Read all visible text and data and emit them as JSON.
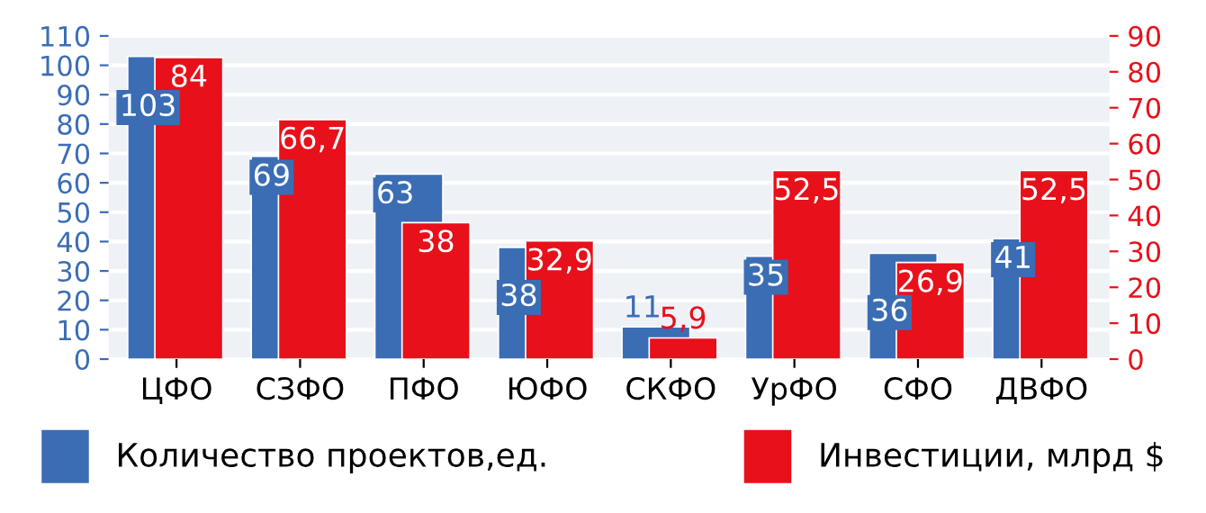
{
  "chart_data": {
    "type": "bar",
    "categories": [
      "ЦФО",
      "СЗФО",
      "ПФО",
      "ЮФО",
      "СКФО",
      "УрФО",
      "СФО",
      "ДВФО"
    ],
    "series": [
      {
        "name": "Количество проектов,ед.",
        "color": "#3b6db5",
        "values": [
          103,
          69,
          63,
          38,
          11,
          35,
          36,
          41
        ],
        "value_labels": [
          "103",
          "69",
          "63",
          "38",
          "11",
          "35",
          "36",
          "41"
        ]
      },
      {
        "name": "Инвестиции, млрд $",
        "color": "#e8101a",
        "axis": "y2",
        "values": [
          84,
          66.7,
          38,
          32.9,
          5.9,
          52.5,
          26.9,
          52.5
        ],
        "value_labels": [
          "84",
          "66,7",
          "38",
          "32,9",
          "5,9",
          "52,5",
          "26,9",
          "52,5"
        ]
      }
    ],
    "ylim": [
      0,
      110
    ],
    "yticks": [
      0,
      10,
      20,
      30,
      40,
      50,
      60,
      70,
      80,
      90,
      100,
      110
    ],
    "y2lim": [
      0,
      90
    ],
    "y2ticks": [
      0,
      10,
      20,
      30,
      40,
      50,
      60,
      70,
      80,
      90
    ],
    "grid": "y",
    "legend": "bottom"
  }
}
